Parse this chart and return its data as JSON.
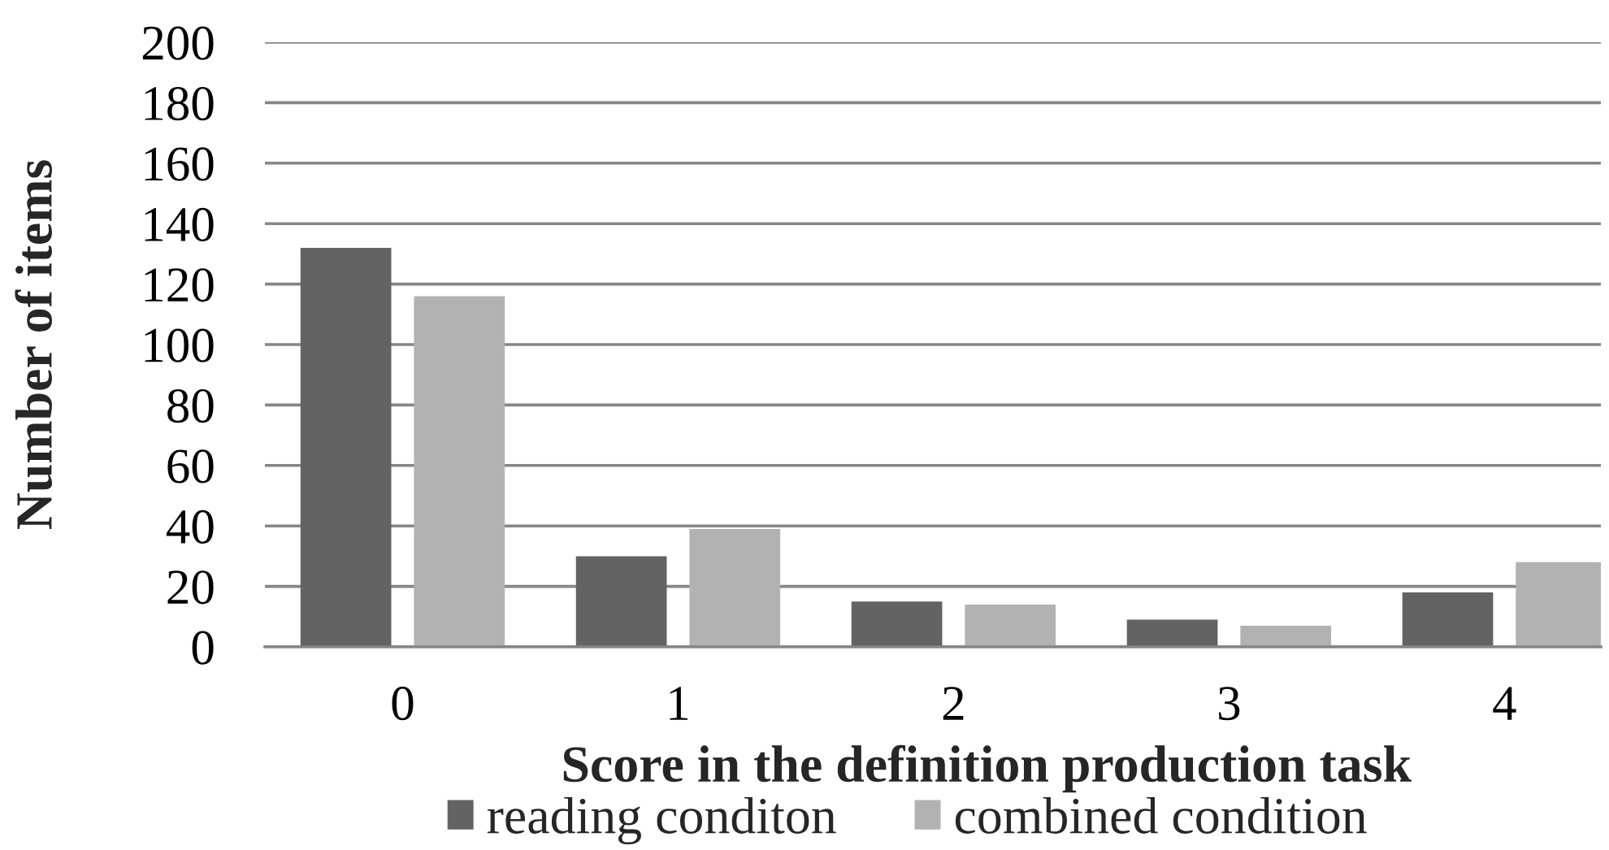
{
  "chart_data": {
    "type": "bar",
    "categories": [
      "0",
      "1",
      "2",
      "3",
      "4"
    ],
    "series": [
      {
        "name": "reading conditon",
        "color": "#636363",
        "values": [
          132,
          30,
          15,
          9,
          18
        ]
      },
      {
        "name": "combined condition",
        "color": "#b2b2b2",
        "values": [
          116,
          39,
          14,
          7,
          28
        ]
      }
    ],
    "xlabel": "Score in the definition production task",
    "ylabel": "Number of items",
    "ylim": [
      0,
      200
    ],
    "yticks": [
      0,
      20,
      40,
      60,
      80,
      100,
      120,
      140,
      160,
      180,
      200
    ],
    "grid": "y",
    "legend": "bottom"
  }
}
